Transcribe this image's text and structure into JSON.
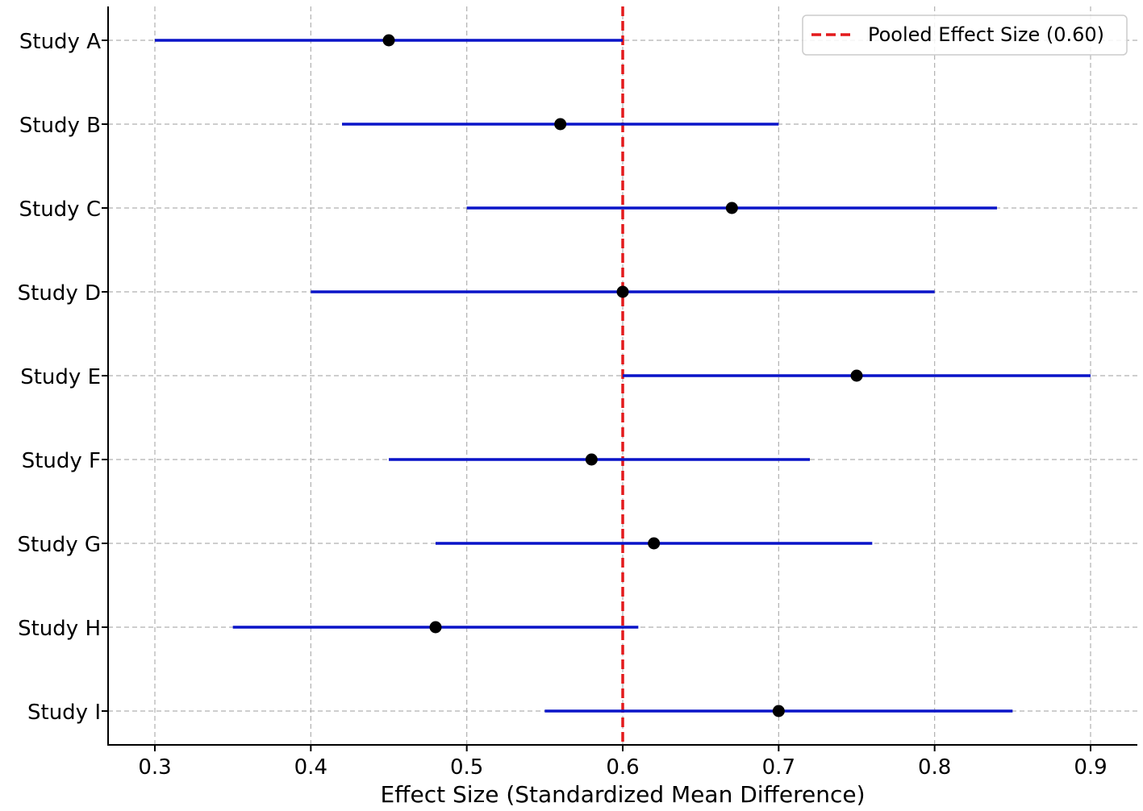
{
  "chart_data": {
    "type": "forest",
    "xlabel": "Effect Size (Standardized Mean Difference)",
    "ylabel": "",
    "xlim": [
      0.27,
      0.93
    ],
    "xticks": [
      0.3,
      0.4,
      0.5,
      0.6,
      0.7,
      0.8,
      0.9
    ],
    "xtick_labels": [
      "0.3",
      "0.4",
      "0.5",
      "0.6",
      "0.7",
      "0.8",
      "0.9"
    ],
    "grid": true,
    "legend": {
      "placement": "top-right",
      "label": "Pooled Effect Size (0.60)"
    },
    "pooled_effect": 0.6,
    "colors": {
      "ci_line": "#0a14c8",
      "point": "#000000",
      "pooled_line": "#e31a1c"
    },
    "studies": [
      {
        "name": "Study A",
        "effect": 0.45,
        "lower": 0.3,
        "upper": 0.6
      },
      {
        "name": "Study B",
        "effect": 0.56,
        "lower": 0.42,
        "upper": 0.7
      },
      {
        "name": "Study C",
        "effect": 0.67,
        "lower": 0.5,
        "upper": 0.84
      },
      {
        "name": "Study D",
        "effect": 0.6,
        "lower": 0.4,
        "upper": 0.8
      },
      {
        "name": "Study E",
        "effect": 0.75,
        "lower": 0.6,
        "upper": 0.9
      },
      {
        "name": "Study F",
        "effect": 0.58,
        "lower": 0.45,
        "upper": 0.72
      },
      {
        "name": "Study G",
        "effect": 0.62,
        "lower": 0.48,
        "upper": 0.76
      },
      {
        "name": "Study H",
        "effect": 0.48,
        "lower": 0.35,
        "upper": 0.61
      },
      {
        "name": "Study I",
        "effect": 0.7,
        "lower": 0.55,
        "upper": 0.85
      }
    ]
  }
}
